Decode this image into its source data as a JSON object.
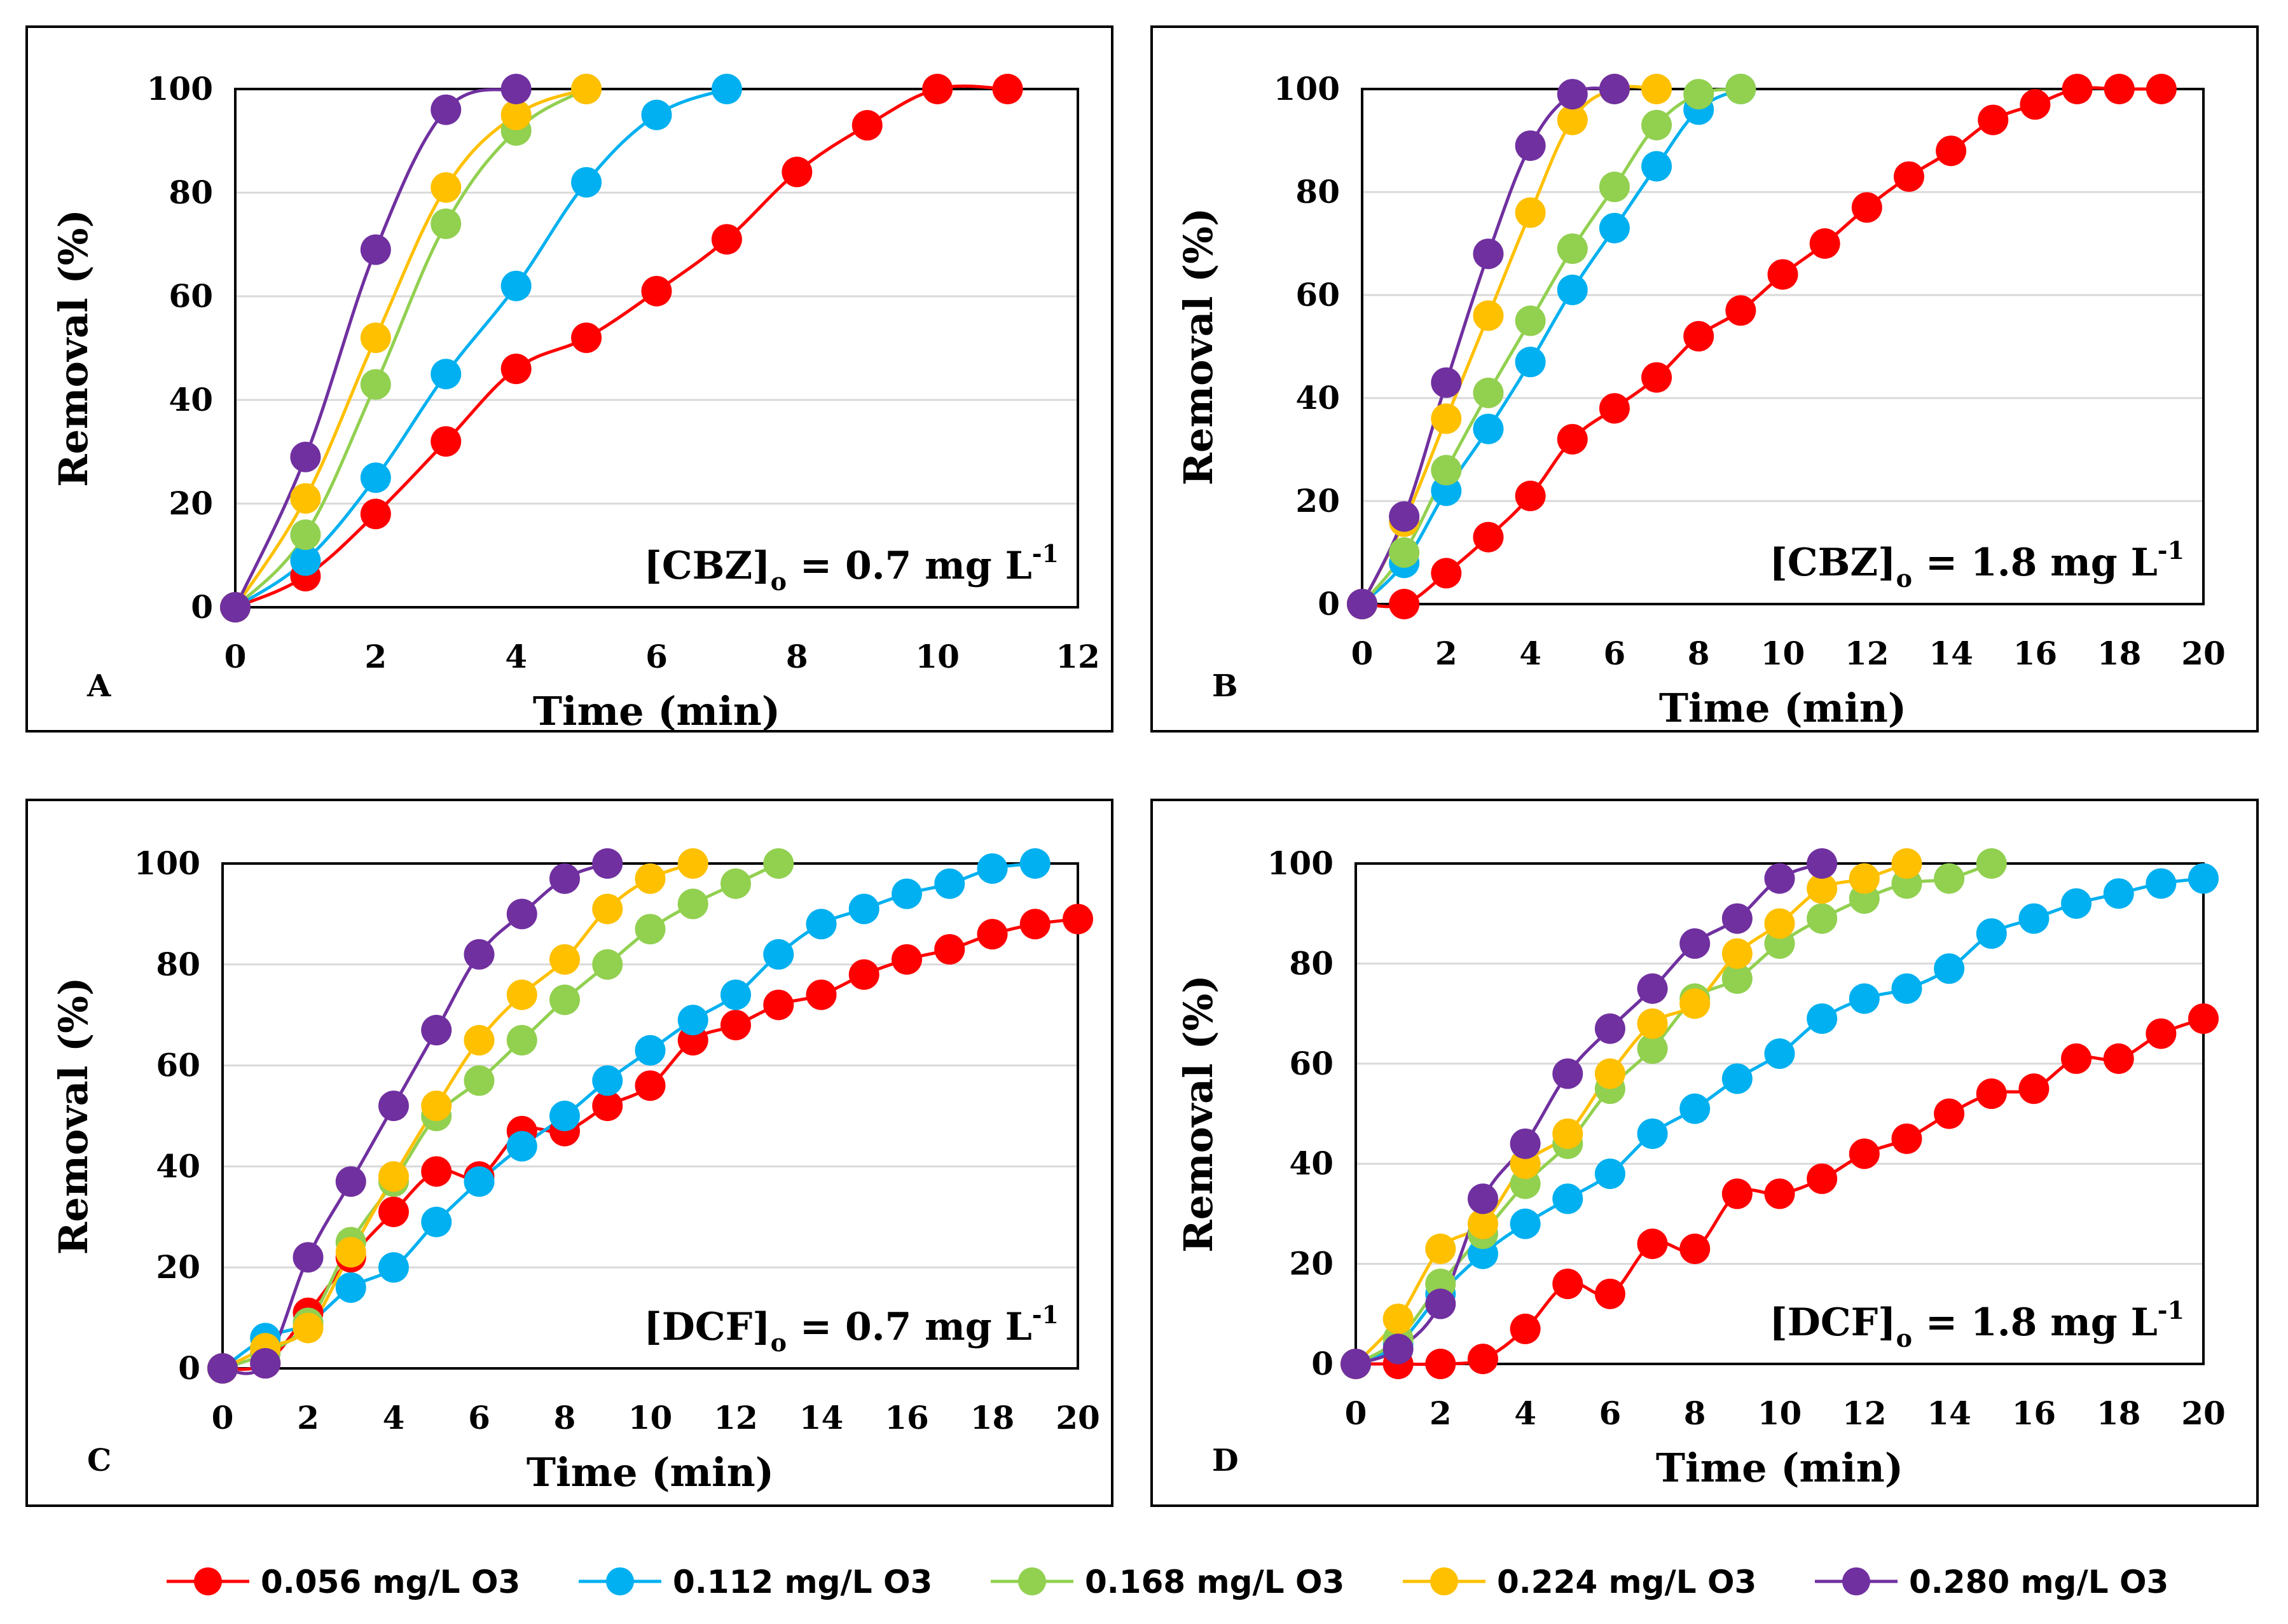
{
  "legend": [
    {
      "label": "0.056 mg/L O3",
      "color": "#ff0000"
    },
    {
      "label": "0.112 mg/L O3",
      "color": "#00b0f0"
    },
    {
      "label": "0.168 mg/L O3",
      "color": "#92d050"
    },
    {
      "label": "0.224 mg/L O3",
      "color": "#ffc000"
    },
    {
      "label": "0.280 mg/L O3",
      "color": "#7030a0"
    }
  ],
  "chart_data": [
    {
      "panel": "A",
      "type": "line",
      "annotation": {
        "main": "[CBZ]",
        "sub": "o",
        "rest": " = 0.7 mg L",
        "sup": "-1"
      },
      "xlabel": "Time (min)",
      "ylabel": "Removal (%)",
      "xlim": [
        0,
        12
      ],
      "ylim": [
        0,
        100
      ],
      "xticks": [
        0,
        2,
        4,
        6,
        8,
        10,
        12
      ],
      "yticks": [
        0,
        20,
        40,
        60,
        80,
        100
      ],
      "series": [
        {
          "name": "0.056 mg/L O3",
          "x": [
            0,
            1,
            2,
            3,
            4,
            5,
            6,
            7,
            8,
            9,
            10,
            11
          ],
          "y": [
            0,
            6,
            18,
            32,
            46,
            52,
            61,
            71,
            84,
            93,
            100,
            100
          ]
        },
        {
          "name": "0.112 mg/L O3",
          "x": [
            0,
            1,
            2,
            3,
            4,
            5,
            6,
            7
          ],
          "y": [
            0,
            9,
            25,
            45,
            62,
            82,
            95,
            100
          ]
        },
        {
          "name": "0.168 mg/L O3",
          "x": [
            0,
            1,
            2,
            3,
            4,
            5
          ],
          "y": [
            0,
            14,
            43,
            74,
            92,
            100
          ]
        },
        {
          "name": "0.224 mg/L O3",
          "x": [
            0,
            1,
            2,
            3,
            4,
            5
          ],
          "y": [
            0,
            21,
            52,
            81,
            95,
            100
          ]
        },
        {
          "name": "0.280 mg/L O3",
          "x": [
            0,
            1,
            2,
            3,
            4
          ],
          "y": [
            0,
            29,
            69,
            96,
            100
          ]
        }
      ]
    },
    {
      "panel": "B",
      "type": "line",
      "annotation": {
        "main": "[CBZ]",
        "sub": "o",
        "rest": " = 1.8 mg L",
        "sup": "-1"
      },
      "xlabel": "Time (min)",
      "ylabel": "Removal (%)",
      "xlim": [
        0,
        20
      ],
      "ylim": [
        0,
        100
      ],
      "xticks": [
        0,
        2,
        4,
        6,
        8,
        10,
        12,
        14,
        16,
        18,
        20
      ],
      "yticks": [
        0,
        20,
        40,
        60,
        80,
        100
      ],
      "series": [
        {
          "name": "0.056 mg/L O3",
          "x": [
            0,
            1,
            2,
            3,
            4,
            5,
            6,
            7,
            8,
            9,
            10,
            11,
            12,
            13,
            14,
            15,
            16,
            17,
            18,
            19
          ],
          "y": [
            0,
            0,
            6,
            13,
            21,
            32,
            38,
            44,
            52,
            57,
            64,
            70,
            77,
            83,
            88,
            94,
            97,
            100,
            100,
            100
          ]
        },
        {
          "name": "0.112 mg/L O3",
          "x": [
            0,
            1,
            2,
            3,
            4,
            5,
            6,
            7,
            8,
            9
          ],
          "y": [
            0,
            8,
            22,
            34,
            47,
            61,
            73,
            85,
            96,
            100
          ]
        },
        {
          "name": "0.168 mg/L O3",
          "x": [
            0,
            1,
            2,
            3,
            4,
            5,
            6,
            7,
            8,
            9
          ],
          "y": [
            0,
            10,
            26,
            41,
            55,
            69,
            81,
            93,
            99,
            100
          ]
        },
        {
          "name": "0.224 mg/L O3",
          "x": [
            0,
            1,
            2,
            3,
            4,
            5,
            6,
            7
          ],
          "y": [
            0,
            16,
            36,
            56,
            76,
            94,
            100,
            100
          ]
        },
        {
          "name": "0.280 mg/L O3",
          "x": [
            0,
            1,
            2,
            3,
            4,
            5,
            6
          ],
          "y": [
            0,
            17,
            43,
            68,
            89,
            99,
            100
          ]
        }
      ]
    },
    {
      "panel": "C",
      "type": "line",
      "annotation": {
        "main": "[DCF]",
        "sub": "o",
        "rest": " = 0.7 mg L",
        "sup": "-1"
      },
      "xlabel": "Time (min)",
      "ylabel": "Removal (%)",
      "xlim": [
        0,
        20
      ],
      "ylim": [
        0,
        100
      ],
      "xticks": [
        0,
        2,
        4,
        6,
        8,
        10,
        12,
        14,
        16,
        18,
        20
      ],
      "yticks": [
        0,
        20,
        40,
        60,
        80,
        100
      ],
      "series": [
        {
          "name": "0.056 mg/L O3",
          "x": [
            0,
            1,
            2,
            3,
            4,
            5,
            6,
            7,
            8,
            9,
            10,
            11,
            12,
            13,
            14,
            15,
            16,
            17,
            18,
            19,
            20
          ],
          "y": [
            0,
            1,
            11,
            22,
            31,
            39,
            38,
            47,
            47,
            52,
            56,
            65,
            68,
            72,
            74,
            78,
            81,
            83,
            86,
            88,
            89
          ]
        },
        {
          "name": "0.112 mg/L O3",
          "x": [
            0,
            1,
            2,
            3,
            4,
            5,
            6,
            7,
            8,
            9,
            10,
            11,
            12,
            13,
            14,
            15,
            16,
            17,
            18,
            19
          ],
          "y": [
            0,
            6,
            9,
            16,
            20,
            29,
            37,
            44,
            50,
            57,
            63,
            69,
            74,
            82,
            88,
            91,
            94,
            96,
            99,
            100
          ]
        },
        {
          "name": "0.168 mg/L O3",
          "x": [
            0,
            1,
            2,
            3,
            4,
            5,
            6,
            7,
            8,
            9,
            10,
            11,
            12,
            13
          ],
          "y": [
            0,
            3,
            9,
            25,
            37,
            50,
            57,
            65,
            73,
            80,
            87,
            92,
            96,
            100
          ]
        },
        {
          "name": "0.224 mg/L O3",
          "x": [
            0,
            1,
            2,
            3,
            4,
            5,
            6,
            7,
            8,
            9,
            10,
            11
          ],
          "y": [
            0,
            4,
            8,
            23,
            38,
            52,
            65,
            74,
            81,
            91,
            97,
            100
          ]
        },
        {
          "name": "0.280 mg/L O3",
          "x": [
            0,
            1,
            2,
            3,
            4,
            5,
            6,
            7,
            8,
            9
          ],
          "y": [
            0,
            1,
            22,
            37,
            52,
            67,
            82,
            90,
            97,
            100
          ]
        }
      ]
    },
    {
      "panel": "D",
      "type": "line",
      "annotation": {
        "main": "[DCF]",
        "sub": "o",
        "rest": " = 1.8 mg L",
        "sup": "-1"
      },
      "xlabel": "Time (min)",
      "ylabel": "Removal (%)",
      "xlim": [
        0,
        20
      ],
      "ylim": [
        0,
        100
      ],
      "xticks": [
        0,
        2,
        4,
        6,
        8,
        10,
        12,
        14,
        16,
        18,
        20
      ],
      "yticks": [
        0,
        20,
        40,
        60,
        80,
        100
      ],
      "series": [
        {
          "name": "0.056 mg/L O3",
          "x": [
            0,
            1,
            2,
            3,
            4,
            5,
            6,
            7,
            8,
            9,
            10,
            11,
            12,
            13,
            14,
            15,
            16,
            17,
            18,
            19,
            20
          ],
          "y": [
            0,
            0,
            0,
            1,
            7,
            16,
            14,
            24,
            23,
            34,
            34,
            37,
            42,
            45,
            50,
            54,
            55,
            61,
            61,
            66,
            69
          ]
        },
        {
          "name": "0.112 mg/L O3",
          "x": [
            0,
            1,
            2,
            3,
            4,
            5,
            6,
            7,
            8,
            9,
            10,
            11,
            12,
            13,
            14,
            15,
            16,
            17,
            18,
            19,
            20
          ],
          "y": [
            0,
            4,
            14,
            22,
            28,
            33,
            38,
            46,
            51,
            57,
            62,
            69,
            73,
            75,
            79,
            86,
            89,
            92,
            94,
            96,
            97
          ]
        },
        {
          "name": "0.168 mg/L O3",
          "x": [
            0,
            1,
            2,
            3,
            4,
            5,
            6,
            7,
            8,
            9,
            10,
            11,
            12,
            13,
            14,
            15
          ],
          "y": [
            0,
            5,
            16,
            26,
            36,
            44,
            55,
            63,
            73,
            77,
            84,
            89,
            93,
            96,
            97,
            100
          ]
        },
        {
          "name": "0.224 mg/L O3",
          "x": [
            0,
            1,
            2,
            3,
            4,
            5,
            6,
            7,
            8,
            9,
            10,
            11,
            12,
            13
          ],
          "y": [
            0,
            9,
            23,
            28,
            40,
            46,
            58,
            68,
            72,
            82,
            88,
            95,
            97,
            100
          ]
        },
        {
          "name": "0.280 mg/L O3",
          "x": [
            0,
            1,
            2,
            3,
            4,
            5,
            6,
            7,
            8,
            9,
            10,
            11
          ],
          "y": [
            0,
            3,
            12,
            33,
            44,
            58,
            67,
            75,
            84,
            89,
            97,
            100
          ]
        }
      ]
    }
  ]
}
